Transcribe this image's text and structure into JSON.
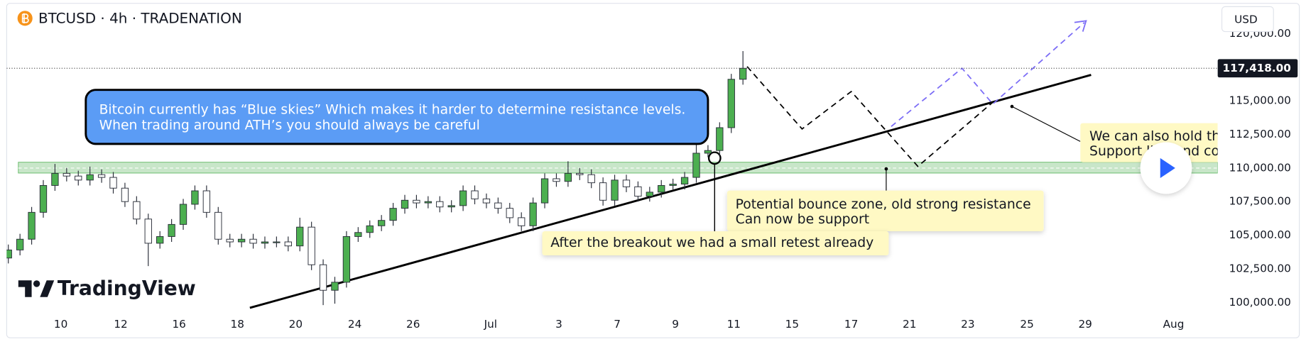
{
  "chart_data": {
    "type": "candlestick",
    "title": "BTCUSD · 4h · TRADENATION",
    "currency": "USD",
    "logo": "TradingView",
    "up_color": "#4caf50",
    "down_color": "#ffffff",
    "wick_color": "#2a2e39",
    "open": [
      103300,
      103900,
      104700,
      106700,
      108700,
      109600,
      109400,
      109100,
      109500,
      109300,
      108500,
      107500,
      106200,
      104400,
      104900,
      105800,
      107300,
      108300,
      106700,
      104700,
      104500,
      104700,
      104400,
      104500,
      104500,
      104200,
      105600,
      102800,
      100900,
      101500,
      104900,
      105200,
      105700,
      106100,
      107000,
      107600,
      107400,
      107500,
      107100,
      107200,
      108300,
      107700,
      107400,
      107000,
      106300,
      105700,
      107400,
      109200,
      109000,
      109600,
      109500,
      108900,
      107600,
      109100,
      108600,
      107900,
      108200,
      108700,
      108800,
      109300,
      111100,
      111300,
      113000,
      116600
    ],
    "high": [
      104300,
      105100,
      107100,
      109100,
      110300,
      110000,
      109800,
      110100,
      109900,
      109700,
      108900,
      107900,
      106600,
      105300,
      106200,
      107700,
      108700,
      108700,
      107100,
      105100,
      105100,
      105100,
      104900,
      104900,
      104900,
      106300,
      106000,
      103200,
      101900,
      105300,
      105600,
      106100,
      106500,
      107400,
      108000,
      108000,
      107900,
      107900,
      107600,
      108700,
      108700,
      108100,
      107800,
      107400,
      106700,
      107800,
      109600,
      109600,
      110500,
      110000,
      109900,
      109300,
      109500,
      109500,
      109000,
      108600,
      109100,
      109200,
      109700,
      111900,
      111700,
      113400,
      117000,
      118700
    ],
    "low": [
      102900,
      103500,
      104300,
      106300,
      108300,
      109000,
      108700,
      108700,
      108900,
      108100,
      107100,
      105800,
      102700,
      104000,
      104500,
      105400,
      106900,
      106300,
      104300,
      104100,
      104100,
      104000,
      104000,
      104100,
      103800,
      103800,
      102400,
      99800,
      99900,
      101100,
      104500,
      104800,
      105300,
      105700,
      106600,
      107000,
      107000,
      106700,
      106700,
      106800,
      107300,
      107000,
      106600,
      105900,
      105300,
      105300,
      107000,
      108600,
      108600,
      109100,
      108500,
      107200,
      107200,
      108200,
      107500,
      107500,
      107800,
      108400,
      108400,
      108900,
      110800,
      110900,
      112600,
      116200
    ],
    "close": [
      103900,
      104700,
      106700,
      108700,
      109600,
      109400,
      109100,
      109500,
      109300,
      108500,
      107500,
      106200,
      104400,
      104900,
      105800,
      107300,
      108300,
      106700,
      104700,
      104500,
      104700,
      104400,
      104500,
      104500,
      104200,
      105600,
      102800,
      100900,
      101500,
      104900,
      105200,
      105700,
      106100,
      107000,
      107600,
      107400,
      107500,
      107100,
      107200,
      108300,
      107700,
      107400,
      107000,
      106300,
      105700,
      107400,
      109200,
      109000,
      109600,
      109500,
      108900,
      107600,
      109100,
      108600,
      107900,
      108200,
      108700,
      108800,
      109300,
      111100,
      111300,
      113000,
      116600,
      117418
    ],
    "xlabels": [
      "10",
      "12",
      "16",
      "18",
      "20",
      "24",
      "26",
      "Jul",
      "3",
      "7",
      "9",
      "11",
      "15",
      "17",
      "21",
      "23",
      "25",
      "29",
      "Aug"
    ],
    "ylim": [
      99100,
      121880
    ],
    "yticks": [
      {
        "value": 100000,
        "label": "100,000.00"
      },
      {
        "value": 102500,
        "label": "102,500.00"
      },
      {
        "value": 105000,
        "label": "105,000.00"
      },
      {
        "value": 107500,
        "label": "107,500.00"
      },
      {
        "value": 110000,
        "label": "110,000.00"
      },
      {
        "value": 112500,
        "label": "112,500.00"
      },
      {
        "value": 115000,
        "label": "115,000.00"
      },
      {
        "value": 120000,
        "label": "120,000.00"
      }
    ],
    "last_price": {
      "value": 117418,
      "label": "117,418.00"
    },
    "grid": false,
    "annotations": {
      "callout": [
        "Bitcoin currently has “Blue skies” Which makes it harder to determine resistance levels.",
        "When trading around ATH’s you should always be careful"
      ],
      "bounce": [
        "Potential bounce zone, old strong resistance",
        "Can now be support"
      ],
      "retest": "After the breakout we had a small retest already",
      "hold": [
        "We can also hold th",
        "Support line and co"
      ]
    }
  }
}
